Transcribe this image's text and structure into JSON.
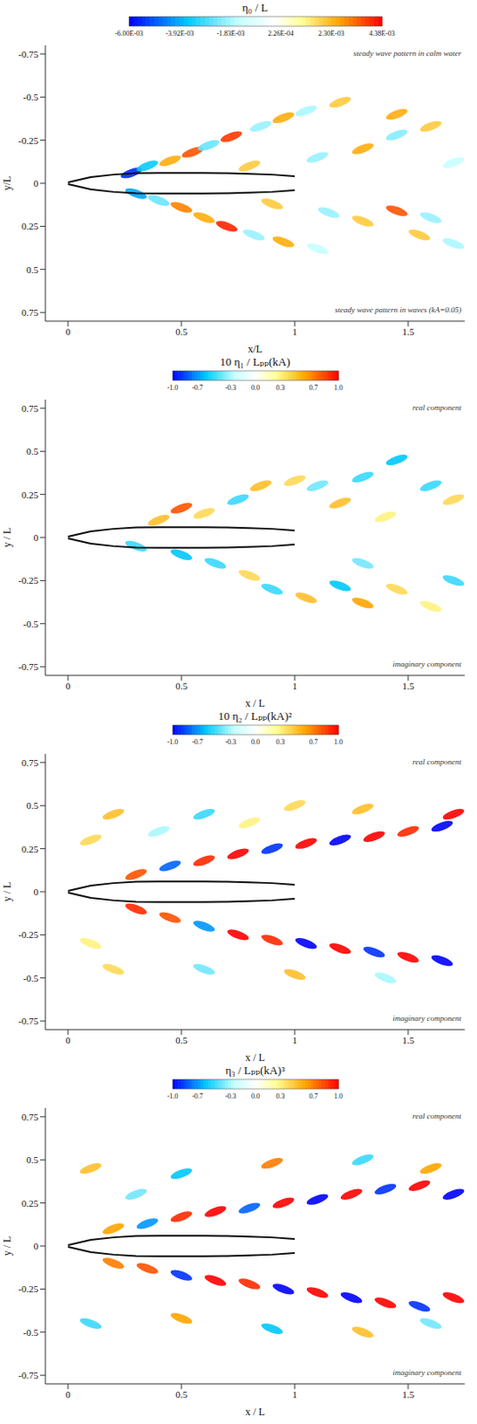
{
  "chart_data": [
    {
      "type": "contour",
      "title": "η₀ / L",
      "x_label": "x/L",
      "y_label": "y/L",
      "xlim": [
        -0.1,
        1.75
      ],
      "ylim": [
        0.8,
        -0.8
      ],
      "xticks": [
        0,
        0.5,
        1,
        1.5
      ],
      "yticks": [
        -0.75,
        -0.5,
        -0.25,
        0,
        0.25,
        0.5,
        0.75
      ],
      "annotations": [
        "steady wave pattern in calm water",
        "steady wave pattern in waves (kA=0.05)"
      ],
      "colorbar": {
        "range": [
          -0.006,
          0.00438
        ],
        "ticks": [
          {
            "value": -0.006,
            "label": "-6.00E-03"
          },
          {
            "value": -0.00392,
            "label": "-3.92E-03"
          },
          {
            "value": -0.00183,
            "label": "-1.83E-03"
          },
          {
            "value": 0.000226,
            "label": "2.26E-04"
          },
          {
            "value": 0.0023,
            "label": "2.30E-03"
          },
          {
            "value": 0.00438,
            "label": "4.38E-03"
          }
        ]
      },
      "patches": {
        "x": [
          0.28,
          0.35,
          0.45,
          0.55,
          0.62,
          0.72,
          0.85,
          0.95,
          1.05,
          1.2,
          0.8,
          1.1,
          1.3,
          1.45,
          1.6,
          1.7,
          1.45,
          0.3,
          0.4,
          0.5,
          0.6,
          0.7,
          0.82,
          0.95,
          1.1,
          0.9,
          1.15,
          1.3,
          1.45,
          1.6,
          1.55,
          1.7
        ],
        "y": [
          -0.06,
          -0.1,
          -0.13,
          -0.18,
          -0.22,
          -0.27,
          -0.33,
          -0.38,
          -0.42,
          -0.47,
          -0.1,
          -0.15,
          -0.2,
          -0.28,
          -0.33,
          -0.12,
          -0.4,
          0.06,
          0.1,
          0.14,
          0.2,
          0.25,
          0.3,
          0.34,
          0.38,
          0.12,
          0.17,
          0.22,
          0.16,
          0.2,
          0.3,
          0.35
        ],
        "values": [
          -0.0055,
          -0.0035,
          0.0025,
          0.0035,
          -0.0025,
          0.0038,
          -0.002,
          0.0025,
          -0.0018,
          0.002,
          0.002,
          -0.002,
          0.0025,
          -0.0022,
          0.002,
          -0.0015,
          0.0025,
          -0.004,
          -0.0025,
          0.003,
          0.0025,
          0.004,
          -0.002,
          0.0025,
          -0.0015,
          0.002,
          -0.002,
          0.002,
          0.0035,
          -0.002,
          0.002,
          -0.0018
        ]
      },
      "hull": {
        "x": [
          0,
          0.05,
          0.1,
          0.2,
          0.3,
          0.4,
          0.5,
          0.6,
          0.7,
          0.8,
          0.9,
          1.0
        ],
        "y_upper": [
          0.005,
          0.02,
          0.035,
          0.05,
          0.058,
          0.06,
          0.06,
          0.06,
          0.058,
          0.055,
          0.05,
          0.04
        ],
        "y_lower": [
          -0.005,
          -0.02,
          -0.035,
          -0.05,
          -0.058,
          -0.06,
          -0.06,
          -0.06,
          -0.058,
          -0.055,
          -0.05,
          -0.04
        ]
      }
    },
    {
      "type": "contour",
      "title": "10 η₁ / Lₚₚ(kA)",
      "x_label": "x / L",
      "y_label": "y / L",
      "xlim": [
        -0.1,
        1.75
      ],
      "ylim": [
        -0.8,
        0.8
      ],
      "xticks": [
        0,
        0.5,
        1,
        1.5
      ],
      "yticks": [
        -0.75,
        -0.5,
        -0.25,
        0,
        0.25,
        0.5,
        0.75
      ],
      "annotations": [
        "real component",
        "imaginary component"
      ],
      "colorbar": {
        "range": [
          -1,
          1
        ],
        "ticks": [
          {
            "value": -1,
            "label": "-1.0"
          },
          {
            "value": -0.7,
            "label": "-0.7"
          },
          {
            "value": -0.3,
            "label": "-0.3"
          },
          {
            "value": 0,
            "label": "0.0"
          },
          {
            "value": 0.3,
            "label": "0.3"
          },
          {
            "value": 0.7,
            "label": "0.7"
          },
          {
            "value": 1,
            "label": "1.0"
          }
        ]
      },
      "patches": {
        "x": [
          0.4,
          0.5,
          0.6,
          0.75,
          0.85,
          1.0,
          1.1,
          1.2,
          1.3,
          1.45,
          1.6,
          1.7,
          1.4,
          0.3,
          0.5,
          0.65,
          0.8,
          0.9,
          1.05,
          1.2,
          1.3,
          1.45,
          1.6,
          1.7,
          1.3
        ],
        "y": [
          0.1,
          0.17,
          0.14,
          0.22,
          0.3,
          0.33,
          0.3,
          0.2,
          0.35,
          0.45,
          0.3,
          0.22,
          0.12,
          -0.05,
          -0.1,
          -0.15,
          -0.22,
          -0.3,
          -0.35,
          -0.28,
          -0.38,
          -0.3,
          -0.4,
          -0.25,
          -0.15
        ],
        "values": [
          0.5,
          0.8,
          0.4,
          -0.5,
          0.5,
          0.4,
          -0.4,
          0.5,
          -0.5,
          -0.6,
          -0.5,
          0.4,
          0.3,
          -0.5,
          -0.6,
          -0.5,
          0.4,
          -0.5,
          0.5,
          -0.6,
          0.6,
          0.4,
          0.3,
          -0.5,
          -0.4
        ]
      },
      "hull": {
        "x": [
          0,
          0.05,
          0.1,
          0.2,
          0.3,
          0.4,
          0.5,
          0.6,
          0.7,
          0.8,
          0.9,
          1.0
        ],
        "y_upper": [
          0.005,
          0.02,
          0.035,
          0.05,
          0.058,
          0.06,
          0.06,
          0.06,
          0.058,
          0.055,
          0.05,
          0.04
        ],
        "y_lower": [
          -0.005,
          -0.02,
          -0.035,
          -0.05,
          -0.058,
          -0.06,
          -0.06,
          -0.06,
          -0.058,
          -0.055,
          -0.05,
          -0.04
        ]
      }
    },
    {
      "type": "contour",
      "title": "10 η₂ / Lₚₚ(kA)²",
      "x_label": "x / L",
      "y_label": "y / L",
      "xlim": [
        -0.1,
        1.75
      ],
      "ylim": [
        -0.8,
        0.8
      ],
      "xticks": [
        0,
        0.5,
        1,
        1.5
      ],
      "yticks": [
        -0.75,
        -0.5,
        -0.25,
        0,
        0.25,
        0.5,
        0.75
      ],
      "annotations": [
        "real component",
        "imaginary component"
      ],
      "colorbar": {
        "range": [
          -1,
          1
        ],
        "ticks": [
          {
            "value": -1,
            "label": "-1.0"
          },
          {
            "value": -0.7,
            "label": "-0.7"
          },
          {
            "value": -0.3,
            "label": "-0.3"
          },
          {
            "value": 0,
            "label": "0.0"
          },
          {
            "value": 0.3,
            "label": "0.3"
          },
          {
            "value": 0.7,
            "label": "0.7"
          },
          {
            "value": 1,
            "label": "1.0"
          }
        ]
      },
      "patches": {
        "x": [
          0.3,
          0.45,
          0.6,
          0.75,
          0.9,
          1.05,
          1.2,
          1.35,
          1.5,
          1.65,
          1.7,
          0.2,
          0.6,
          1.0,
          0.4,
          1.3,
          0.1,
          0.8,
          0.3,
          0.45,
          0.6,
          0.75,
          0.9,
          1.05,
          1.2,
          1.35,
          1.5,
          1.65,
          0.2,
          0.6,
          1.0,
          1.4,
          0.1
        ],
        "y": [
          0.1,
          0.15,
          0.18,
          0.22,
          0.25,
          0.28,
          0.3,
          0.32,
          0.35,
          0.38,
          0.45,
          0.45,
          0.45,
          0.5,
          0.35,
          0.48,
          0.3,
          0.4,
          -0.1,
          -0.15,
          -0.2,
          -0.25,
          -0.28,
          -0.3,
          -0.33,
          -0.35,
          -0.38,
          -0.4,
          -0.45,
          -0.45,
          -0.48,
          -0.5,
          -0.3
        ],
        "values": [
          0.8,
          -0.8,
          0.9,
          1.0,
          -0.9,
          1.0,
          -1.0,
          1.0,
          0.9,
          -1.0,
          1.0,
          0.5,
          -0.5,
          0.4,
          -0.3,
          0.5,
          0.4,
          0.3,
          0.9,
          0.8,
          -0.7,
          1.0,
          0.9,
          -1.0,
          1.0,
          -0.9,
          1.0,
          -1.0,
          0.4,
          -0.4,
          0.5,
          -0.3,
          0.3
        ]
      },
      "hull": {
        "x": [
          0,
          0.05,
          0.1,
          0.2,
          0.3,
          0.4,
          0.5,
          0.6,
          0.7,
          0.8,
          0.9,
          1.0
        ],
        "y_upper": [
          0.005,
          0.02,
          0.035,
          0.05,
          0.058,
          0.06,
          0.06,
          0.06,
          0.058,
          0.055,
          0.05,
          0.04
        ],
        "y_lower": [
          -0.005,
          -0.02,
          -0.035,
          -0.05,
          -0.058,
          -0.06,
          -0.06,
          -0.06,
          -0.058,
          -0.055,
          -0.05,
          -0.04
        ]
      }
    },
    {
      "type": "contour",
      "title": "η₃ / Lₚₚ(kA)³",
      "x_label": "x / L",
      "y_label": "y / L",
      "xlim": [
        -0.1,
        1.75
      ],
      "ylim": [
        -0.8,
        0.8
      ],
      "xticks": [
        0,
        0.5,
        1,
        1.5
      ],
      "yticks": [
        -0.75,
        -0.5,
        -0.25,
        0,
        0.25,
        0.5,
        0.75
      ],
      "annotations": [
        "real component",
        "imaginary component"
      ],
      "colorbar": {
        "range": [
          -1,
          1
        ],
        "ticks": [
          {
            "value": -1,
            "label": "-1.0"
          },
          {
            "value": -0.7,
            "label": "-0.7"
          },
          {
            "value": -0.3,
            "label": "-0.3"
          },
          {
            "value": 0,
            "label": "0.0"
          },
          {
            "value": 0.3,
            "label": "0.3"
          },
          {
            "value": 0.7,
            "label": "0.7"
          },
          {
            "value": 1,
            "label": "1.0"
          }
        ]
      },
      "patches": {
        "x": [
          0.2,
          0.35,
          0.5,
          0.65,
          0.8,
          0.95,
          1.1,
          1.25,
          1.4,
          1.55,
          1.7,
          0.1,
          0.5,
          0.9,
          1.3,
          1.6,
          0.3,
          0.2,
          0.35,
          0.5,
          0.65,
          0.8,
          0.95,
          1.1,
          1.25,
          1.4,
          1.55,
          1.7,
          0.1,
          0.5,
          0.9,
          1.3,
          1.6
        ],
        "y": [
          0.1,
          0.13,
          0.17,
          0.2,
          0.22,
          0.25,
          0.27,
          0.3,
          0.33,
          0.35,
          0.3,
          0.45,
          0.42,
          0.48,
          0.5,
          0.45,
          0.3,
          -0.1,
          -0.13,
          -0.17,
          -0.2,
          -0.22,
          -0.25,
          -0.27,
          -0.3,
          -0.33,
          -0.35,
          -0.3,
          -0.45,
          -0.42,
          -0.48,
          -0.5,
          -0.45
        ],
        "values": [
          0.6,
          -0.7,
          0.9,
          1.0,
          -0.8,
          1.0,
          -1.0,
          1.0,
          -0.9,
          1.0,
          -1.0,
          0.5,
          -0.6,
          0.7,
          -0.5,
          0.6,
          -0.4,
          0.7,
          0.8,
          -0.9,
          1.0,
          0.9,
          -1.0,
          1.0,
          -1.0,
          1.0,
          -0.9,
          1.0,
          -0.5,
          0.6,
          -0.6,
          0.5,
          -0.4
        ]
      },
      "hull": {
        "x": [
          0,
          0.05,
          0.1,
          0.2,
          0.3,
          0.4,
          0.5,
          0.6,
          0.7,
          0.8,
          0.9,
          1.0
        ],
        "y_upper": [
          0.005,
          0.02,
          0.035,
          0.05,
          0.058,
          0.06,
          0.06,
          0.06,
          0.058,
          0.055,
          0.05,
          0.04
        ],
        "y_lower": [
          -0.005,
          -0.02,
          -0.035,
          -0.05,
          -0.058,
          -0.06,
          -0.06,
          -0.06,
          -0.058,
          -0.055,
          -0.05,
          -0.04
        ]
      }
    }
  ]
}
